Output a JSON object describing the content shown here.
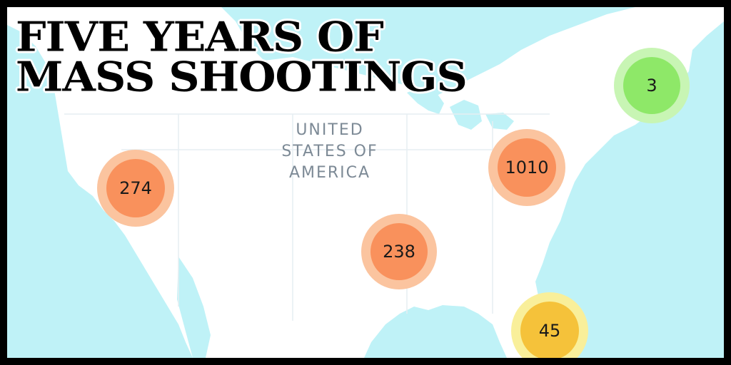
{
  "title": {
    "line1": "FIVE YEARS OF",
    "line2": "MASS SHOOTINGS"
  },
  "map": {
    "country_label": {
      "line1": "UNITED",
      "line2": "STATES OF",
      "line3": "AMERICA"
    },
    "clusters": [
      {
        "id": "west",
        "count": "274",
        "fill": "#f9915c",
        "halo": "#fbc49f"
      },
      {
        "id": "south",
        "count": "238",
        "fill": "#f9915c",
        "halo": "#fbc49f"
      },
      {
        "id": "east",
        "count": "1010",
        "fill": "#f9915c",
        "halo": "#fbc49f"
      },
      {
        "id": "northeast",
        "count": "3",
        "fill": "#8ee868",
        "halo": "#c8f5b4"
      },
      {
        "id": "florida",
        "count": "45",
        "fill": "#f5c23a",
        "halo": "#f9ef9a"
      }
    ],
    "colors": {
      "water": "#bff2f7",
      "land": "#ffffff",
      "border": "#000000"
    }
  }
}
